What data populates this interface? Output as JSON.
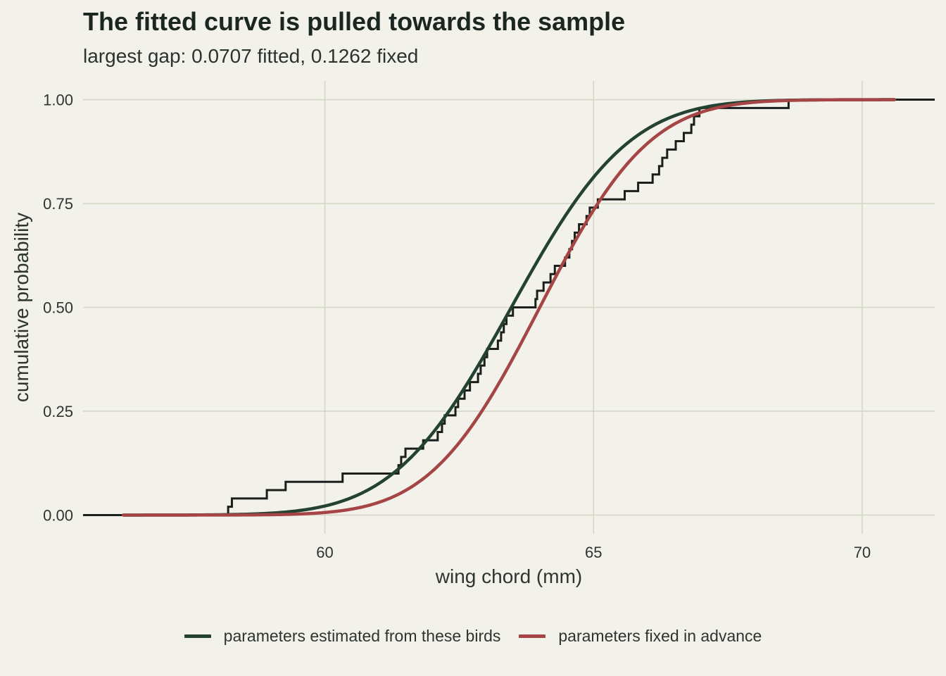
{
  "chart_data": {
    "type": "line",
    "title": "The fitted curve is pulled towards the sample",
    "subtitle": "largest gap: 0.0707 fitted, 0.1262 fixed",
    "xlabel": "wing chord (mm)",
    "ylabel": "cumulative probability",
    "xlim": [
      55.5,
      71.35
    ],
    "ylim": [
      -0.045,
      1.045
    ],
    "xticks": [
      60,
      65,
      70
    ],
    "xtick_labels": [
      "60",
      "65",
      "70"
    ],
    "yticks": [
      0,
      0.25,
      0.5,
      0.75,
      1
    ],
    "ytick_labels": [
      "0.00",
      "0.25",
      "0.50",
      "0.75",
      "1.00"
    ],
    "grid": true,
    "legend_position": "bottom",
    "series": [
      {
        "name": "parameters estimated from these birds",
        "kind": "normal_cdf",
        "mean": 63.47,
        "sd": 1.72,
        "x_range": [
          56.25,
          70.6
        ],
        "color": "#244232"
      },
      {
        "name": "parameters fixed in advance",
        "kind": "normal_cdf",
        "mean": 64.0,
        "sd": 1.6,
        "x_range": [
          56.25,
          70.6
        ],
        "color": "#a54545"
      }
    ],
    "ecdf": {
      "kind": "step",
      "color": "#1b1f1c",
      "x_start": 55.5,
      "x_end": 71.35,
      "steps": [
        [
          58.2,
          0.02
        ],
        [
          58.27,
          0.04
        ],
        [
          58.92,
          0.06
        ],
        [
          59.27,
          0.08
        ],
        [
          60.33,
          0.1
        ],
        [
          61.37,
          0.12
        ],
        [
          61.42,
          0.14
        ],
        [
          61.5,
          0.16
        ],
        [
          61.83,
          0.18
        ],
        [
          62.1,
          0.2
        ],
        [
          62.18,
          0.22
        ],
        [
          62.23,
          0.24
        ],
        [
          62.43,
          0.26
        ],
        [
          62.48,
          0.28
        ],
        [
          62.6,
          0.3
        ],
        [
          62.7,
          0.32
        ],
        [
          62.85,
          0.34
        ],
        [
          62.9,
          0.36
        ],
        [
          62.97,
          0.38
        ],
        [
          63.02,
          0.4
        ],
        [
          63.22,
          0.42
        ],
        [
          63.28,
          0.44
        ],
        [
          63.33,
          0.46
        ],
        [
          63.38,
          0.48
        ],
        [
          63.5,
          0.5
        ],
        [
          63.92,
          0.52
        ],
        [
          63.95,
          0.54
        ],
        [
          64.07,
          0.56
        ],
        [
          64.2,
          0.58
        ],
        [
          64.28,
          0.6
        ],
        [
          64.47,
          0.62
        ],
        [
          64.55,
          0.64
        ],
        [
          64.6,
          0.66
        ],
        [
          64.65,
          0.68
        ],
        [
          64.73,
          0.7
        ],
        [
          64.87,
          0.72
        ],
        [
          64.93,
          0.74
        ],
        [
          65.08,
          0.76
        ],
        [
          65.58,
          0.78
        ],
        [
          65.83,
          0.8
        ],
        [
          66.1,
          0.82
        ],
        [
          66.22,
          0.84
        ],
        [
          66.28,
          0.86
        ],
        [
          66.37,
          0.88
        ],
        [
          66.53,
          0.9
        ],
        [
          66.68,
          0.92
        ],
        [
          66.82,
          0.94
        ],
        [
          66.87,
          0.96
        ],
        [
          66.97,
          0.98
        ],
        [
          68.63,
          1.0
        ]
      ]
    }
  }
}
